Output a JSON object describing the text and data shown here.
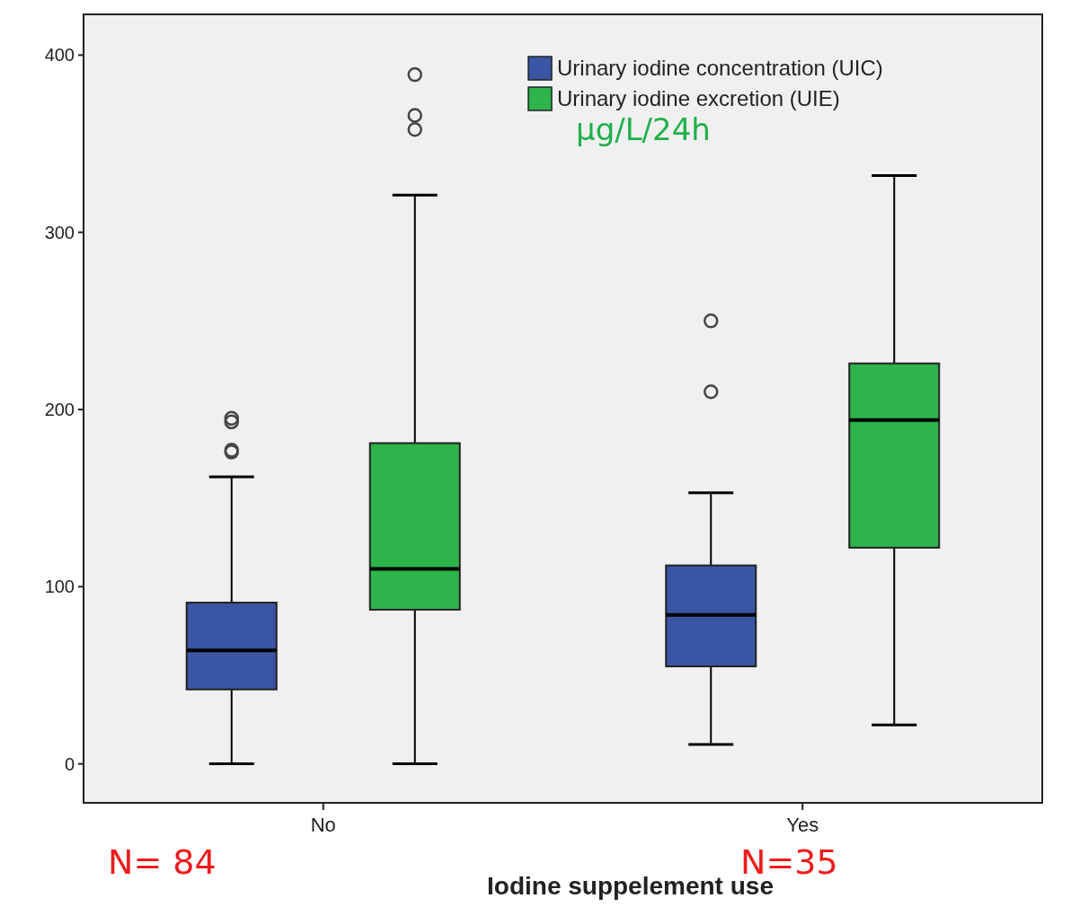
{
  "chart_data": {
    "type": "box",
    "xlabel": "Iodine suppelement use",
    "categories": [
      "No",
      "Yes"
    ],
    "ylim": [
      -22,
      423
    ],
    "yticks": [
      0,
      100,
      200,
      300,
      400
    ],
    "legend": "top right",
    "grid": false,
    "series": [
      {
        "name": "Urinary iodine concentration (UIC)",
        "color": "#3b55a5",
        "boxes": [
          {
            "low": 0,
            "q1": 42,
            "median": 64,
            "q3": 91,
            "high": 162,
            "outliers": [
              193,
              195,
              177,
              176
            ]
          },
          {
            "low": 11,
            "q1": 55,
            "median": 84,
            "q3": 112,
            "high": 153,
            "outliers": [
              250,
              210
            ]
          }
        ]
      },
      {
        "name": "Urinary iodine excretion (UIE)",
        "color": "#2db44a",
        "boxes": [
          {
            "low": 0,
            "q1": 87,
            "median": 110,
            "q3": 181,
            "high": 321,
            "outliers": [
              389,
              366,
              358
            ]
          },
          {
            "low": 22,
            "q1": 122,
            "median": 194,
            "q3": 226,
            "high": 332
          }
        ]
      }
    ],
    "annotations": [
      "µg/L/24h",
      "N= 84",
      "N=35"
    ]
  }
}
